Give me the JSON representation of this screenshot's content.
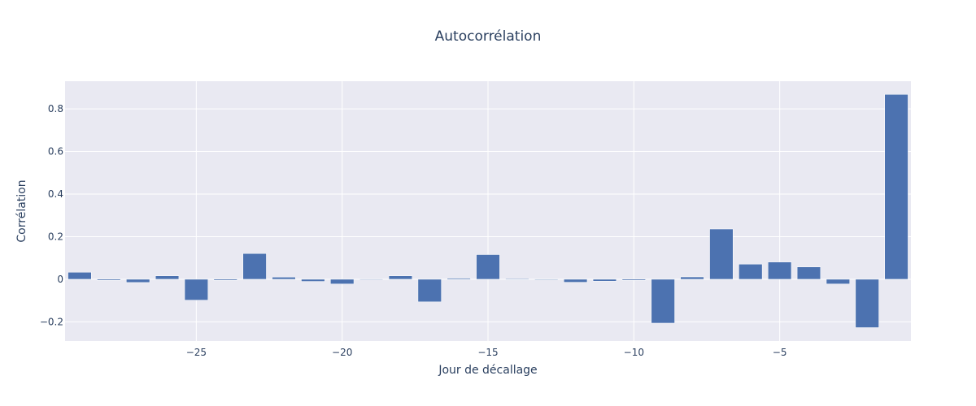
{
  "chart_data": {
    "type": "bar",
    "title": "Autocorrélation",
    "xlabel": "Jour de décallage",
    "ylabel": "Corrélation",
    "x": [
      -29,
      -28,
      -27,
      -26,
      -25,
      -24,
      -23,
      -22,
      -21,
      -20,
      -19,
      -18,
      -17,
      -16,
      -15,
      -14,
      -13,
      -12,
      -11,
      -10,
      -9,
      -8,
      -7,
      -6,
      -5,
      -4,
      -3,
      -2,
      -1
    ],
    "values": [
      0.033,
      -0.005,
      -0.015,
      0.016,
      -0.098,
      -0.005,
      0.121,
      0.01,
      -0.01,
      -0.022,
      0.001,
      0.016,
      -0.106,
      0.005,
      0.116,
      0.002,
      -0.003,
      -0.014,
      -0.009,
      -0.005,
      -0.206,
      0.011,
      0.236,
      0.071,
      0.081,
      0.058,
      -0.022,
      -0.227,
      0.868
    ],
    "xlim": [
      -29.5,
      -0.5
    ],
    "ylim": [
      -0.29,
      0.93
    ],
    "x_ticks": [
      -25,
      -20,
      -15,
      -10,
      -5
    ],
    "x_tick_labels": [
      "−25",
      "−20",
      "−15",
      "−10",
      "−5"
    ],
    "y_ticks": [
      -0.2,
      0,
      0.2,
      0.4,
      0.6,
      0.8
    ],
    "y_tick_labels": [
      "−0.2",
      "0",
      "0.2",
      "0.4",
      "0.6",
      "0.8"
    ],
    "grid": true,
    "legend": "none",
    "colors": {
      "bar": "#4c72b0",
      "plot_background": "#e9e9f2",
      "grid": "#ffffff",
      "text": "#2a3f5f"
    }
  }
}
